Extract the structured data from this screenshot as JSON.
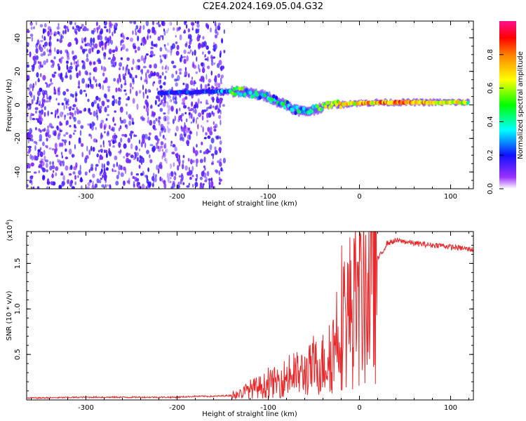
{
  "title": "C2E4.2024.169.05.04.G32",
  "chart_data": [
    {
      "type": "heatmap",
      "xlabel": "Height of straight line (km)",
      "ylabel": "Frequency (Hz)",
      "xlim": [
        -365,
        125
      ],
      "ylim": [
        -50,
        50
      ],
      "xticks": [
        -300,
        -200,
        -100,
        0,
        100
      ],
      "xtick_labels": [
        "-300",
        "-200",
        "-100",
        "0",
        "100"
      ],
      "yticks": [
        -40,
        -20,
        0,
        20,
        40
      ],
      "ytick_labels": [
        "-40",
        "-20",
        "0",
        "20",
        "40"
      ],
      "colorbar": {
        "label": "Normalized spectral amplitude",
        "range": [
          0,
          1
        ],
        "ticks": [
          0.0,
          0.2,
          0.4,
          0.6,
          0.8
        ],
        "tick_labels": [
          "0.0",
          "0.2",
          "0.4",
          "0.6",
          "0.8"
        ]
      },
      "noise_region_x": [
        -365,
        -148
      ],
      "signal_trace": {
        "x": [
          -220,
          -200,
          -180,
          -160,
          -150,
          -140,
          -130,
          -120,
          -110,
          -100,
          -90,
          -80,
          -70,
          -60,
          -50,
          -40,
          -30,
          -20,
          -10,
          0,
          20,
          40,
          60,
          80,
          100,
          120
        ],
        "y": [
          7,
          7.5,
          7.5,
          8,
          8,
          8,
          8,
          7,
          6,
          5,
          2,
          0,
          -3,
          -4,
          -3,
          -1,
          0,
          0,
          1,
          1,
          1.5,
          1.5,
          1.5,
          1.5,
          1.5,
          1.5
        ],
        "amplitude": [
          0.3,
          0.3,
          0.3,
          0.3,
          0.4,
          0.6,
          0.65,
          0.5,
          0.5,
          0.5,
          0.5,
          0.5,
          0.5,
          0.55,
          0.6,
          0.7,
          0.75,
          0.8,
          0.85,
          0.85,
          0.9,
          0.95,
          0.95,
          0.9,
          0.85,
          0.7
        ]
      },
      "grid": false
    },
    {
      "type": "line",
      "xlabel": "Height of straight line (km)",
      "ylabel": "SNR (10 * v/v)",
      "y_multiplier": "(x10",
      "y_multiplier_exp": "4",
      "xlim": [
        -365,
        125
      ],
      "ylim": [
        0,
        1.85
      ],
      "xticks": [
        -300,
        -200,
        -100,
        0,
        100
      ],
      "xtick_labels": [
        "-300",
        "-200",
        "-100",
        "0",
        "100"
      ],
      "yticks": [
        0.5,
        1.0,
        1.5
      ],
      "ytick_labels": [
        "0.5",
        "1.0",
        "1.5"
      ],
      "color": "#e8282a",
      "series": [
        {
          "x": [
            -365,
            -300,
            -250,
            -200,
            -180,
            -160,
            -140,
            -130,
            -120,
            -110,
            -100,
            -90,
            -80,
            -70,
            -60,
            -50,
            -40,
            -30,
            -25,
            -20,
            -15,
            -10,
            -5,
            0,
            5,
            10,
            15,
            20,
            25,
            30,
            40,
            50,
            60,
            70,
            80,
            90,
            100,
            110,
            125
          ],
          "y": [
            0.02,
            0.03,
            0.03,
            0.03,
            0.04,
            0.04,
            0.05,
            0.07,
            0.12,
            0.14,
            0.17,
            0.2,
            0.25,
            0.28,
            0.3,
            0.35,
            0.4,
            0.5,
            0.75,
            0.95,
            0.9,
            1.0,
            1.05,
            1.08,
            1.15,
            1.25,
            1.4,
            1.55,
            1.62,
            1.72,
            1.75,
            1.74,
            1.72,
            1.71,
            1.7,
            1.7,
            1.68,
            1.67,
            1.65
          ]
        }
      ],
      "grid": false
    }
  ]
}
